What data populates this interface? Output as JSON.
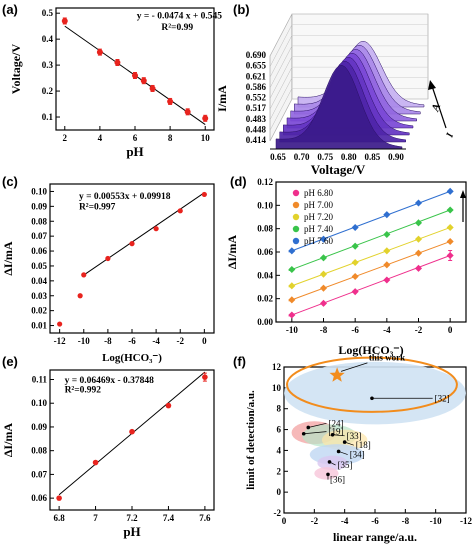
{
  "colors": {
    "red": "#e8231e",
    "fit": "#000000",
    "axis": "#000000",
    "purple": "#7c3fe0"
  },
  "panels": {
    "a": "(a)",
    "b": "(b)",
    "c": "(c)",
    "d": "(d)",
    "e": "(e)",
    "f": "(f)"
  },
  "chart_data": [
    {
      "id": "a",
      "type": "scatter",
      "xlabel": "pH",
      "ylabel": "Voltage/V",
      "xlim": [
        1.5,
        10.5
      ],
      "ylim": [
        0.05,
        0.52
      ],
      "xticks": [
        2,
        4,
        6,
        8,
        10
      ],
      "yticks": [
        0.1,
        0.2,
        0.3,
        0.4,
        0.5
      ],
      "x": [
        2,
        4,
        5,
        6,
        6.5,
        7,
        8,
        9,
        10
      ],
      "y": [
        0.47,
        0.35,
        0.31,
        0.26,
        0.24,
        0.21,
        0.16,
        0.12,
        0.095
      ],
      "fit": {
        "slope": -0.0474,
        "intercept": 0.545
      },
      "equation": "y = - 0.0474 x + 0.545",
      "r2": "R²=0.99"
    },
    {
      "id": "b",
      "type": "area",
      "xlabel": "Voltage/V",
      "ylabel": "I/mA",
      "xticks": [
        "0.65",
        "0.70",
        "0.75",
        "0.80",
        "0.85",
        "0.90"
      ],
      "yticks": [
        "0.414",
        "0.448",
        "0.483",
        "0.517",
        "0.552",
        "0.586",
        "0.621",
        "0.655",
        "0.690"
      ],
      "series_count": 7,
      "arrow_label": "A",
      "arrow_label2": "I"
    },
    {
      "id": "c",
      "type": "scatter",
      "xlabel": "Log(HCO₃⁻)",
      "ylabel": "ΔI/mA",
      "xlim": [
        -12.8,
        0.8
      ],
      "ylim": [
        0.005,
        0.105
      ],
      "xticks": [
        -12,
        -10,
        -8,
        -6,
        -4,
        -2,
        0
      ],
      "yticks": [
        0.01,
        0.02,
        0.03,
        0.04,
        0.05,
        0.06,
        0.07,
        0.08,
        0.09,
        0.1
      ],
      "x": [
        -12,
        -10.3,
        -10,
        -8,
        -6,
        -4,
        -2,
        0
      ],
      "y": [
        0.011,
        0.03,
        0.044,
        0.055,
        0.065,
        0.075,
        0.087,
        0.098
      ],
      "fit": {
        "slope": 0.00553,
        "intercept": 0.09918,
        "from": -10,
        "to": 0
      },
      "equation": "y = 0.00553x + 0.09918",
      "r2": "R²=0.997"
    },
    {
      "id": "d",
      "type": "scatter",
      "xlabel": "Log(HCO₃⁻)",
      "ylabel": "ΔI/mA",
      "xlim": [
        -11,
        1
      ],
      "ylim": [
        0,
        0.12
      ],
      "xticks": [
        -10,
        -8,
        -6,
        -4,
        -2,
        0
      ],
      "yticks": [
        0.0,
        0.02,
        0.04,
        0.06,
        0.08,
        0.1,
        0.12
      ],
      "x": [
        -10,
        -8,
        -6,
        -4,
        -2,
        0
      ],
      "series": [
        {
          "name": "pH 6.80",
          "color": "#ef2f8c",
          "values": [
            0.006,
            0.016,
            0.026,
            0.036,
            0.046,
            0.057
          ]
        },
        {
          "name": "pH 7.00",
          "color": "#f08a2a",
          "values": [
            0.019,
            0.029,
            0.039,
            0.049,
            0.059,
            0.069
          ]
        },
        {
          "name": "pH 7.20",
          "color": "#e2d22c",
          "values": [
            0.031,
            0.041,
            0.051,
            0.061,
            0.071,
            0.081
          ]
        },
        {
          "name": "pH 7.40",
          "color": "#39c44a",
          "values": [
            0.045,
            0.055,
            0.065,
            0.075,
            0.085,
            0.096
          ]
        },
        {
          "name": "pH 7.60",
          "color": "#2f6fd0",
          "values": [
            0.061,
            0.071,
            0.081,
            0.092,
            0.102,
            0.112
          ]
        }
      ]
    },
    {
      "id": "e",
      "type": "scatter",
      "xlabel": "pH",
      "ylabel": "ΔI/mA",
      "xlim": [
        6.75,
        7.65
      ],
      "ylim": [
        0.055,
        0.114
      ],
      "xticks": [
        6.8,
        7.0,
        7.2,
        7.4,
        7.6
      ],
      "yticks": [
        0.06,
        0.07,
        0.08,
        0.09,
        0.1,
        0.11
      ],
      "x": [
        6.8,
        7.0,
        7.2,
        7.4,
        7.6
      ],
      "y": [
        0.06,
        0.075,
        0.088,
        0.099,
        0.111
      ],
      "fit": {
        "slope": 0.06469,
        "intercept": -0.37848
      },
      "equation": "y = 0.06469x - 0.37848",
      "r2": "R²=0.992"
    },
    {
      "id": "f",
      "type": "scatter",
      "xlabel": "linear range/a.u.",
      "ylabel": "limit of detection/a.u.",
      "xlim": [
        0,
        -12
      ],
      "ylim": [
        -2,
        12
      ],
      "xticks": [
        0,
        -2,
        -4,
        -6,
        -8,
        -10,
        -12
      ],
      "yticks": [
        -2,
        0,
        2,
        4,
        6,
        8,
        10,
        12
      ],
      "labels": [
        "this work",
        "[32]",
        "[24]",
        "[19]",
        "[33]",
        "[18]",
        "[34]",
        "[35]",
        "[36]"
      ]
    }
  ]
}
